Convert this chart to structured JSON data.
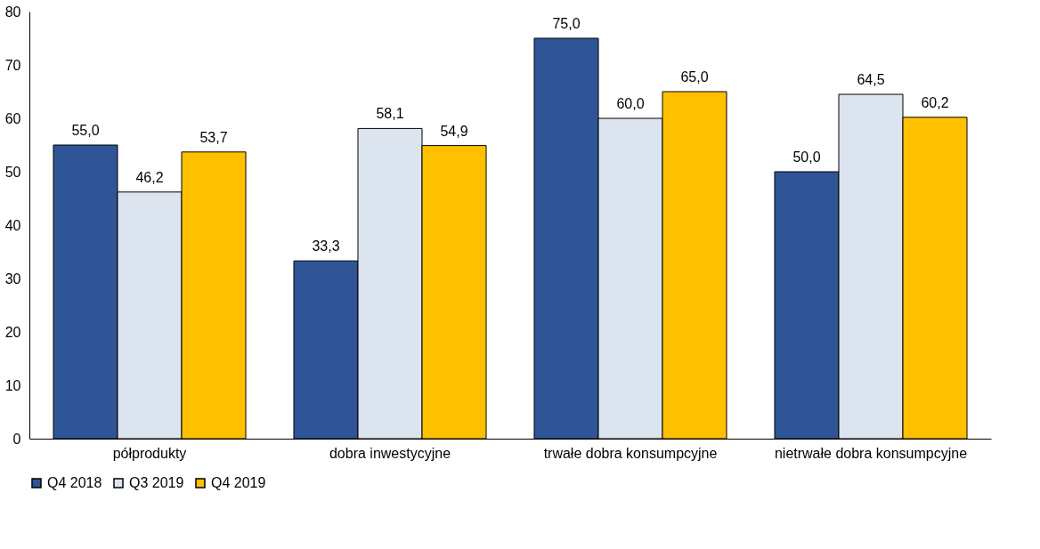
{
  "chart_data": {
    "type": "bar",
    "categories": [
      "półprodukty",
      "dobra inwestycyjne",
      "trwałe dobra konsumpcyjne",
      "nietrwałe dobra konsumpcyjne"
    ],
    "series": [
      {
        "name": "Q4 2018",
        "color": "#2f5597",
        "values": [
          55.0,
          33.3,
          75.0,
          50.0
        ],
        "value_labels": [
          "55,0",
          "33,3",
          "75,0",
          "50,0"
        ]
      },
      {
        "name": "Q3 2019",
        "color": "#dce4f0",
        "values": [
          46.2,
          58.1,
          60.0,
          64.5
        ],
        "value_labels": [
          "46,2",
          "58,1",
          "60,0",
          "64,5"
        ]
      },
      {
        "name": "Q4 2019",
        "color": "#ffc000",
        "values": [
          53.7,
          54.9,
          65.0,
          60.2
        ],
        "value_labels": [
          "53,7",
          "54,9",
          "65,0",
          "60,2"
        ]
      }
    ],
    "ylim": [
      0,
      80
    ],
    "yticks": [
      0,
      10,
      20,
      30,
      40,
      50,
      60,
      70,
      80
    ],
    "grid": false,
    "legend": "bottom"
  }
}
